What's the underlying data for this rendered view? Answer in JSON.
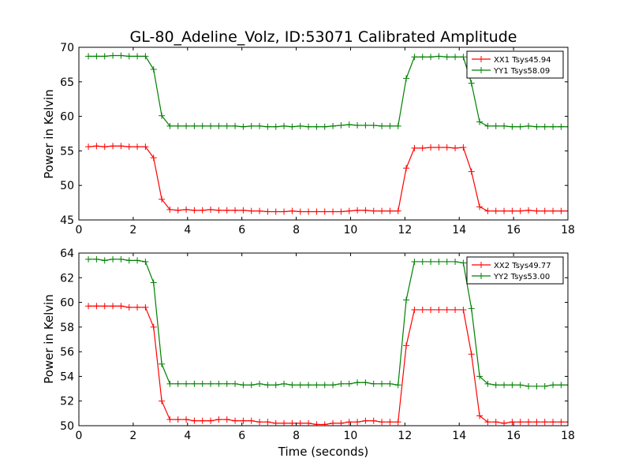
{
  "figure": {
    "title": "GL-80_Adeline_Volz, ID:53071 Calibrated Amplitude",
    "xlabel": "Time (seconds)"
  },
  "chart_data": [
    {
      "type": "line",
      "ylabel": "Power in Kelvin",
      "xlim": [
        0,
        18
      ],
      "ylim": [
        45,
        70
      ],
      "xticks": [
        0,
        2,
        4,
        6,
        8,
        10,
        12,
        14,
        16,
        18
      ],
      "yticks": [
        45,
        50,
        55,
        60,
        65,
        70
      ],
      "legend_position": "top-right",
      "x": [
        0.35,
        0.65,
        0.95,
        1.25,
        1.55,
        1.85,
        2.15,
        2.45,
        2.75,
        3.05,
        3.35,
        3.65,
        3.95,
        4.25,
        4.55,
        4.85,
        5.15,
        5.45,
        5.75,
        6.05,
        6.35,
        6.65,
        6.95,
        7.25,
        7.55,
        7.85,
        8.15,
        8.45,
        8.75,
        9.05,
        9.35,
        9.65,
        9.95,
        10.25,
        10.55,
        10.85,
        11.15,
        11.45,
        11.75,
        12.05,
        12.35,
        12.65,
        12.95,
        13.25,
        13.55,
        13.85,
        14.15,
        14.45,
        14.75,
        15.05,
        15.35,
        15.65,
        15.95,
        16.25,
        16.55,
        16.85,
        17.15,
        17.45,
        17.75,
        18.05
      ],
      "series": [
        {
          "name": "XX1 Tsys45.94",
          "color": "#ff0000",
          "values": [
            55.6,
            55.7,
            55.6,
            55.7,
            55.7,
            55.6,
            55.6,
            55.6,
            54.0,
            48.0,
            46.5,
            46.4,
            46.5,
            46.4,
            46.4,
            46.5,
            46.4,
            46.4,
            46.4,
            46.4,
            46.3,
            46.3,
            46.2,
            46.2,
            46.2,
            46.3,
            46.2,
            46.2,
            46.2,
            46.2,
            46.2,
            46.2,
            46.3,
            46.4,
            46.4,
            46.3,
            46.3,
            46.3,
            46.3,
            52.5,
            55.4,
            55.4,
            55.5,
            55.5,
            55.5,
            55.4,
            55.5,
            52.0,
            46.9,
            46.3,
            46.3,
            46.3,
            46.3,
            46.3,
            46.4,
            46.3,
            46.3,
            46.3,
            46.3,
            46.3
          ]
        },
        {
          "name": "YY1 Tsys58.09",
          "color": "#008000",
          "values": [
            68.7,
            68.7,
            68.7,
            68.8,
            68.8,
            68.7,
            68.7,
            68.7,
            66.8,
            60.1,
            58.6,
            58.6,
            58.6,
            58.6,
            58.6,
            58.6,
            58.6,
            58.6,
            58.6,
            58.5,
            58.6,
            58.6,
            58.5,
            58.5,
            58.6,
            58.5,
            58.6,
            58.5,
            58.5,
            58.5,
            58.6,
            58.7,
            58.8,
            58.7,
            58.7,
            58.7,
            58.6,
            58.6,
            58.6,
            65.5,
            68.6,
            68.6,
            68.6,
            68.7,
            68.6,
            68.6,
            68.6,
            64.8,
            59.2,
            58.6,
            58.6,
            58.6,
            58.5,
            58.5,
            58.6,
            58.5,
            58.5,
            58.5,
            58.5,
            58.5
          ]
        }
      ]
    },
    {
      "type": "line",
      "ylabel": "Power in Kelvin",
      "xlim": [
        0,
        18
      ],
      "ylim": [
        50,
        64
      ],
      "xticks": [
        0,
        2,
        4,
        6,
        8,
        10,
        12,
        14,
        16,
        18
      ],
      "yticks": [
        50,
        52,
        54,
        56,
        58,
        60,
        62,
        64
      ],
      "legend_position": "top-right",
      "x": [
        0.35,
        0.65,
        0.95,
        1.25,
        1.55,
        1.85,
        2.15,
        2.45,
        2.75,
        3.05,
        3.35,
        3.65,
        3.95,
        4.25,
        4.55,
        4.85,
        5.15,
        5.45,
        5.75,
        6.05,
        6.35,
        6.65,
        6.95,
        7.25,
        7.55,
        7.85,
        8.15,
        8.45,
        8.75,
        9.05,
        9.35,
        9.65,
        9.95,
        10.25,
        10.55,
        10.85,
        11.15,
        11.45,
        11.75,
        12.05,
        12.35,
        12.65,
        12.95,
        13.25,
        13.55,
        13.85,
        14.15,
        14.45,
        14.75,
        15.05,
        15.35,
        15.65,
        15.95,
        16.25,
        16.55,
        16.85,
        17.15,
        17.45,
        17.75,
        18.05
      ],
      "series": [
        {
          "name": "XX2 Tsys49.77",
          "color": "#ff0000",
          "values": [
            59.7,
            59.7,
            59.7,
            59.7,
            59.7,
            59.6,
            59.6,
            59.6,
            58.0,
            52.0,
            50.5,
            50.5,
            50.5,
            50.4,
            50.4,
            50.4,
            50.5,
            50.5,
            50.4,
            50.4,
            50.4,
            50.3,
            50.3,
            50.2,
            50.2,
            50.2,
            50.2,
            50.2,
            50.1,
            50.1,
            50.2,
            50.2,
            50.3,
            50.3,
            50.4,
            50.4,
            50.3,
            50.3,
            50.3,
            56.5,
            59.4,
            59.4,
            59.4,
            59.4,
            59.4,
            59.4,
            59.4,
            55.8,
            50.8,
            50.3,
            50.3,
            50.2,
            50.3,
            50.3,
            50.3,
            50.3,
            50.3,
            50.3,
            50.3,
            50.3
          ]
        },
        {
          "name": "YY2 Tsys53.00",
          "color": "#008000",
          "values": [
            63.5,
            63.5,
            63.4,
            63.5,
            63.5,
            63.4,
            63.4,
            63.3,
            61.6,
            55.0,
            53.4,
            53.4,
            53.4,
            53.4,
            53.4,
            53.4,
            53.4,
            53.4,
            53.4,
            53.3,
            53.3,
            53.4,
            53.3,
            53.3,
            53.4,
            53.3,
            53.3,
            53.3,
            53.3,
            53.3,
            53.3,
            53.4,
            53.4,
            53.5,
            53.5,
            53.4,
            53.4,
            53.4,
            53.3,
            60.2,
            63.3,
            63.3,
            63.3,
            63.3,
            63.3,
            63.3,
            63.2,
            59.5,
            54.0,
            53.4,
            53.3,
            53.3,
            53.3,
            53.3,
            53.2,
            53.2,
            53.2,
            53.3,
            53.3,
            53.3
          ]
        }
      ]
    }
  ]
}
